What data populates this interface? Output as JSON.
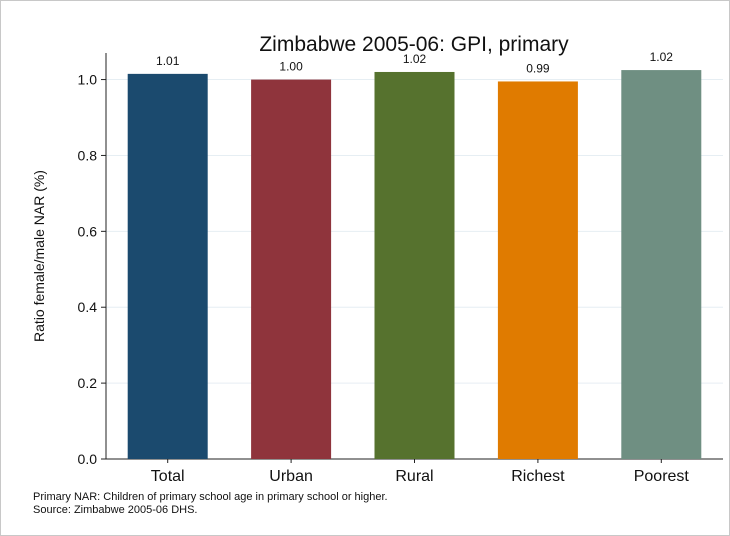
{
  "chart_data": {
    "type": "bar",
    "title": "Zimbabwe 2005-06: GPI, primary",
    "xlabel": "",
    "ylabel": "Ratio female/male NAR (%)",
    "categories": [
      "Total",
      "Urban",
      "Rural",
      "Richest",
      "Poorest"
    ],
    "values": [
      1.015,
      1.0,
      1.02,
      0.995,
      1.025
    ],
    "value_labels": [
      "1.01",
      "1.00",
      "1.02",
      "0.99",
      "1.02"
    ],
    "colors": [
      "#1b4a6e",
      "#8f343c",
      "#56722e",
      "#e07b00",
      "#6f8f82"
    ],
    "ylim": [
      0,
      1.07
    ],
    "yticks": [
      0.0,
      0.2,
      0.4,
      0.6,
      0.8,
      1.0
    ],
    "ytick_labels": [
      "0.0",
      "0.2",
      "0.4",
      "0.6",
      "0.8",
      "1.0"
    ],
    "grid": true,
    "legend": "none"
  },
  "notes": {
    "line1": "Primary NAR: Children of primary school age in primary school or higher.",
    "line2": "Source: Zimbabwe 2005-06 DHS."
  }
}
